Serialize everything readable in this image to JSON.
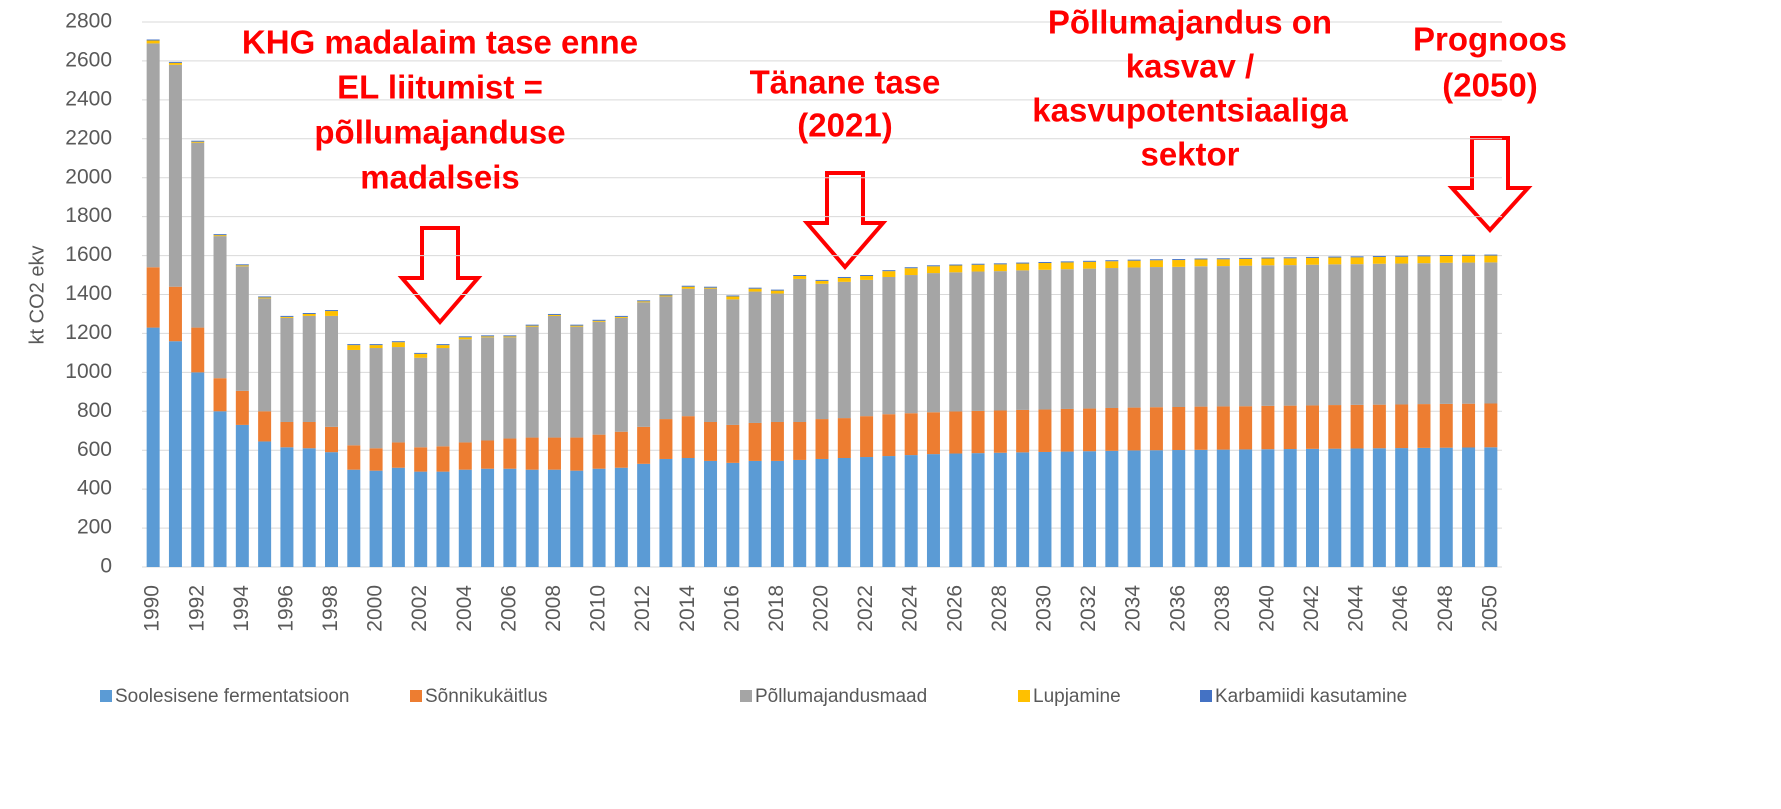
{
  "chart_data": {
    "type": "stacked_bar",
    "y_label": "kt CO2 ekv",
    "categories": [
      "1990",
      null,
      "1992",
      null,
      "1994",
      null,
      "1996",
      null,
      "1998",
      null,
      "2000",
      null,
      "2002",
      null,
      "2004",
      null,
      "2006",
      null,
      "2008",
      null,
      "2010",
      null,
      "2012",
      null,
      "2014",
      null,
      "2016",
      null,
      "2018",
      null,
      "2020",
      null,
      "2022",
      null,
      "2024",
      null,
      "2026",
      null,
      "2028",
      null,
      "2030",
      null,
      "2032",
      null,
      "2034",
      null,
      "2036",
      null,
      "2038",
      null,
      "2040",
      null,
      "2042",
      null,
      "2044",
      null,
      "2046",
      null,
      "2048",
      null,
      "2050"
    ],
    "series": [
      {
        "name": "Soolesisene fermentatsioon",
        "color": "#5b9bd5",
        "values": [
          1230,
          1160,
          1000,
          800,
          730,
          645,
          615,
          610,
          590,
          500,
          495,
          510,
          490,
          490,
          500,
          505,
          505,
          500,
          500,
          495,
          505,
          510,
          530,
          555,
          560,
          545,
          535,
          545,
          545,
          550,
          555,
          560,
          565,
          570,
          575,
          580,
          583,
          585,
          587,
          589,
          591,
          593,
          595,
          597,
          599,
          600,
          601,
          602,
          603,
          604,
          605,
          606,
          607,
          608,
          609,
          610,
          611,
          612,
          613,
          614,
          615
        ]
      },
      {
        "name": "Sõnnikukäitlus",
        "color": "#ed7d31",
        "values": [
          310,
          280,
          230,
          170,
          175,
          155,
          130,
          135,
          130,
          125,
          115,
          130,
          125,
          130,
          140,
          145,
          155,
          165,
          165,
          170,
          175,
          185,
          190,
          205,
          215,
          200,
          195,
          195,
          200,
          195,
          205,
          205,
          210,
          215,
          215,
          215,
          216,
          217,
          217,
          218,
          218,
          219,
          219,
          220,
          220,
          221,
          221,
          222,
          222,
          222,
          223,
          223,
          223,
          224,
          224,
          224,
          224,
          225,
          225,
          225,
          225
        ]
      },
      {
        "name": "Põllumajandusmaad",
        "color": "#a5a5a5",
        "values": [
          1150,
          1140,
          950,
          730,
          640,
          580,
          535,
          545,
          570,
          490,
          515,
          490,
          460,
          505,
          530,
          530,
          520,
          570,
          625,
          570,
          580,
          585,
          640,
          630,
          655,
          685,
          645,
          675,
          660,
          735,
          695,
          700,
          700,
          705,
          710,
          715,
          715,
          716,
          716,
          717,
          718,
          718,
          719,
          719,
          720,
          720,
          720,
          721,
          721,
          722,
          722,
          722,
          723,
          723,
          723,
          724,
          724,
          724,
          725,
          725,
          725
        ]
      },
      {
        "name": "Lupjamine",
        "color": "#ffc000",
        "values": [
          15,
          10,
          5,
          5,
          5,
          5,
          5,
          10,
          25,
          25,
          15,
          25,
          20,
          15,
          10,
          5,
          5,
          5,
          5,
          5,
          5,
          5,
          5,
          5,
          10,
          5,
          15,
          15,
          15,
          15,
          15,
          20,
          20,
          30,
          35,
          35,
          35,
          35,
          35,
          35,
          35,
          35,
          35,
          35,
          35,
          35,
          35,
          35,
          35,
          35,
          35,
          35,
          35,
          35,
          35,
          35,
          35,
          35,
          35,
          35,
          35
        ]
      },
      {
        "name": "Karbamiidi kasutamine",
        "color": "#4472c4",
        "values": [
          5,
          5,
          5,
          5,
          5,
          5,
          5,
          5,
          5,
          5,
          5,
          5,
          5,
          5,
          5,
          5,
          5,
          5,
          5,
          5,
          5,
          5,
          5,
          5,
          5,
          5,
          5,
          5,
          5,
          5,
          5,
          5,
          5,
          5,
          5,
          5,
          5,
          5,
          5,
          5,
          5,
          5,
          5,
          5,
          5,
          5,
          5,
          5,
          5,
          5,
          5,
          5,
          5,
          5,
          5,
          5,
          5,
          5,
          5,
          5,
          5
        ]
      }
    ],
    "ylim": [
      0,
      2800
    ],
    "yticks": [
      0,
      200,
      400,
      600,
      800,
      1000,
      1200,
      1400,
      1600,
      1800,
      2000,
      2200,
      2400,
      2600,
      2800
    ],
    "grid": true,
    "annotations": [
      {
        "lines": [
          "KHG madalaim tase enne",
          "EL liitumist =",
          "põllumajanduse",
          "madalseis"
        ]
      },
      {
        "lines": [
          "Tänane tase",
          "(2021)"
        ]
      },
      {
        "lines": [
          "Põllumajandus on",
          "kasvav /",
          "kasvupotentsiaaliga",
          "sektor"
        ]
      },
      {
        "lines": [
          "Prognoos",
          "(2050)"
        ]
      }
    ]
  }
}
